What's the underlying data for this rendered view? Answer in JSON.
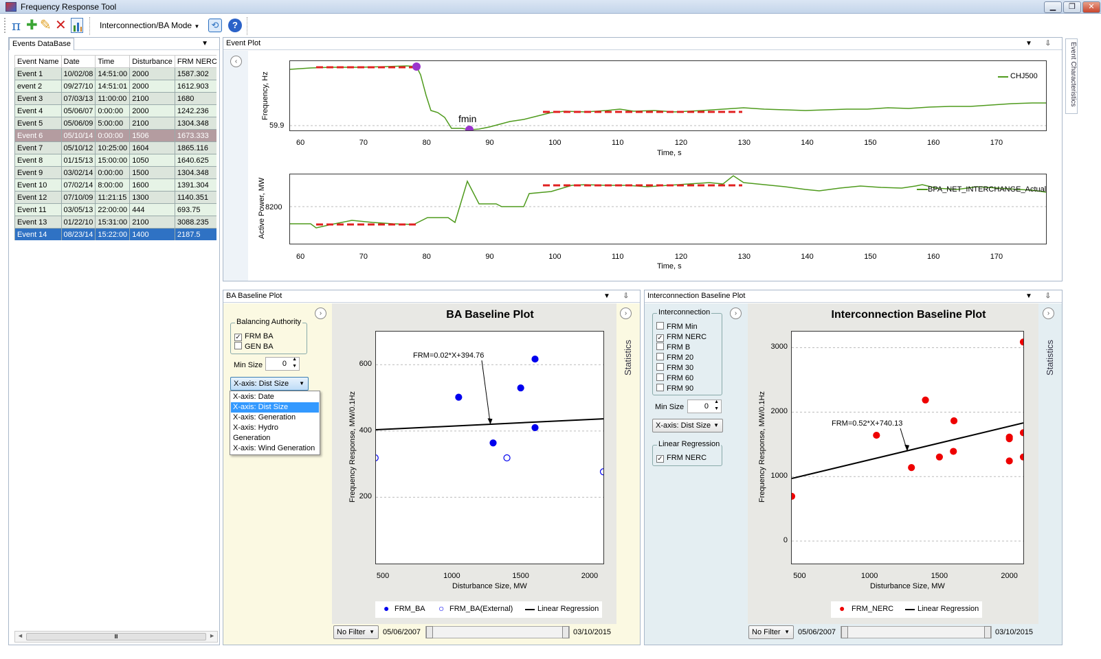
{
  "window": {
    "title": "Frequency Response Tool"
  },
  "toolbar": {
    "mode_label": "Interconnection/BA Mode"
  },
  "events_panel": {
    "title": "Events DataBase",
    "columns": [
      "Event Name",
      "Date",
      "Time",
      "Disturbance",
      "FRM NERC"
    ],
    "rows": [
      [
        "Event 1",
        "10/02/08",
        "14:51:00",
        "2000",
        "1587.302"
      ],
      [
        "event 2",
        "09/27/10",
        "14:51:01",
        "2000",
        "1612.903"
      ],
      [
        "Event 3",
        "07/03/13",
        "11:00:00",
        "2100",
        "1680"
      ],
      [
        "Event 4",
        "05/06/07",
        "0:00:00",
        "2000",
        "1242.236"
      ],
      [
        "Event 5",
        "05/06/09",
        "5:00:00",
        "2100",
        "1304.348"
      ],
      [
        "Event 6",
        "05/10/14",
        "0:00:00",
        "1506",
        "1673.333"
      ],
      [
        "Event 7",
        "05/10/12",
        "10:25:00",
        "1604",
        "1865.116"
      ],
      [
        "Event 8",
        "01/15/13",
        "15:00:00",
        "1050",
        "1640.625"
      ],
      [
        "Event 9",
        "03/02/14",
        "0:00:00",
        "1500",
        "1304.348"
      ],
      [
        "Event 10",
        "07/02/14",
        "8:00:00",
        "1600",
        "1391.304"
      ],
      [
        "Event 12",
        "07/10/09",
        "11:21:15",
        "1300",
        "1140.351"
      ],
      [
        "Event 11",
        "03/05/13",
        "22:00:00",
        "444",
        "693.75"
      ],
      [
        "Event 13",
        "01/22/10",
        "15:31:00",
        "2100",
        "3088.235"
      ],
      [
        "Event 14",
        "08/23/14",
        "15:22:00",
        "1400",
        "2187.5"
      ]
    ],
    "disabled_row": 5,
    "selected_row": 13
  },
  "event_plot": {
    "title": "Event Plot",
    "side_tab": "Event Characteristics",
    "freq": {
      "ylabel": "Frequency, Hz",
      "ytick": "59.9",
      "xlabel": "Time, s",
      "legend": "CHJ500",
      "annotation": "fmin",
      "xticks": [
        "60",
        "70",
        "80",
        "90",
        "100",
        "110",
        "120",
        "130",
        "140",
        "150",
        "160",
        "170"
      ]
    },
    "power": {
      "ylabel": "Active Power, MW",
      "ytick": "8200",
      "xlabel": "Time, s",
      "legend": "BPA_NET_INTERCHANGE_Actual",
      "xticks": [
        "60",
        "70",
        "80",
        "90",
        "100",
        "110",
        "120",
        "130",
        "140",
        "150",
        "160",
        "170"
      ]
    }
  },
  "ba_panel": {
    "title": "BA Baseline Plot",
    "group_label": "Balancing Authority",
    "checks": [
      {
        "label": "FRM BA",
        "checked": true
      },
      {
        "label": "GEN BA",
        "checked": false
      }
    ],
    "min_size_label": "Min Size",
    "min_size_value": "0",
    "xaxis_selected": "X-axis: Dist Size",
    "xaxis_options": [
      "X-axis: Date",
      "X-axis: Dist Size",
      "X-axis: Generation",
      "X-axis: Hydro Generation",
      "X-axis: Wind Generation"
    ],
    "side_tab": "Statistics",
    "filter": "No Filter",
    "date_from": "05/06/2007",
    "date_to": "03/10/2015"
  },
  "ic_panel": {
    "title": "Interconnection Baseline Plot",
    "group_label": "Interconnection",
    "checks": [
      {
        "label": "FRM Min",
        "checked": false
      },
      {
        "label": "FRM NERC",
        "checked": true
      },
      {
        "label": "FRM B",
        "checked": false
      },
      {
        "label": "FRM 20",
        "checked": false
      },
      {
        "label": "FRM 30",
        "checked": false
      },
      {
        "label": "FRM 60",
        "checked": false
      },
      {
        "label": "FRM 90",
        "checked": false
      }
    ],
    "min_size_label": "Min Size",
    "min_size_value": "0",
    "xaxis_selected": "X-axis: Dist Size",
    "lr_group_label": "Linear Regression",
    "lr_checks": [
      {
        "label": "FRM NERC",
        "checked": true
      }
    ],
    "side_tab": "Statistics",
    "filter": "No Filter",
    "date_from": "05/06/2007",
    "date_to": "03/10/2015"
  },
  "chart_data": [
    {
      "type": "scatter",
      "title": "BA Baseline Plot",
      "xlabel": "Disturbance Size, MW",
      "ylabel": "Frequency Response, MW/0.1Hz",
      "xlim": [
        450,
        2100
      ],
      "ylim": [
        0,
        700
      ],
      "xticks": [
        "500",
        "1000",
        "1500",
        "2000"
      ],
      "yticks": [
        "200",
        "400",
        "600"
      ],
      "annotation": "FRM=0.02*X+394.76",
      "series": [
        {
          "name": "FRM_BA",
          "color": "#0000ee",
          "filled": true,
          "points": [
            [
              1050,
              502
            ],
            [
              1300,
              364
            ],
            [
              1500,
              530
            ],
            [
              1604,
              617
            ],
            [
              1604,
              410
            ]
          ]
        },
        {
          "name": "FRM_BA(External)",
          "color": "#0000ee",
          "filled": false,
          "points": [
            [
              444,
              319
            ],
            [
              1400,
              319
            ],
            [
              2100,
              277
            ]
          ]
        },
        {
          "name": "Linear Regression",
          "color": "#000000",
          "line": [
            [
              444,
              403.6
            ],
            [
              2100,
              436.8
            ]
          ]
        }
      ]
    },
    {
      "type": "scatter",
      "title": "Interconnection Baseline Plot",
      "xlabel": "Disturbance Size, MW",
      "ylabel": "Frequency Response, MW/0.1Hz",
      "xlim": [
        444,
        2100
      ],
      "ylim": [
        -350,
        3250
      ],
      "xticks": [
        "500",
        "1000",
        "1500",
        "2000"
      ],
      "yticks": [
        "0",
        "1000",
        "2000",
        "3000"
      ],
      "annotation": "FRM=0.52*X+740.13",
      "series": [
        {
          "name": "FRM_NERC",
          "color": "#ee0000",
          "filled": true,
          "points": [
            [
              444,
              694
            ],
            [
              1050,
              1641
            ],
            [
              1300,
              1140
            ],
            [
              1400,
              2188
            ],
            [
              1500,
              1304
            ],
            [
              1600,
              1391
            ],
            [
              1604,
              1865
            ],
            [
              2000,
              1587
            ],
            [
              2000,
              1613
            ],
            [
              2000,
              1242
            ],
            [
              2100,
              1680
            ],
            [
              2100,
              1304
            ],
            [
              2100,
              3088
            ]
          ]
        },
        {
          "name": "Linear Regression",
          "color": "#000000",
          "line": [
            [
              444,
              971
            ],
            [
              2100,
              1832
            ]
          ]
        }
      ]
    }
  ]
}
